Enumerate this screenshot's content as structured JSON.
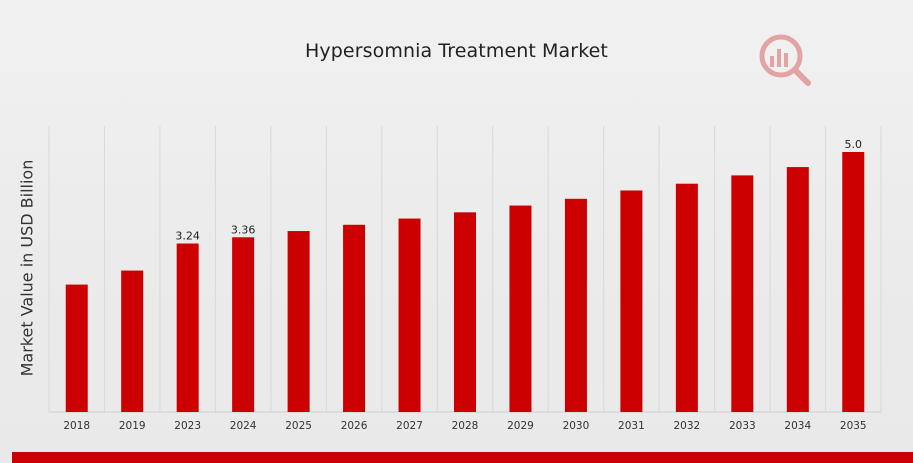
{
  "chart_data": {
    "type": "bar",
    "title": "Hypersomnia Treatment Market",
    "xlabel": "",
    "ylabel": "Market Value in USD Billion",
    "categories": [
      "2018",
      "2019",
      "2023",
      "2024",
      "2025",
      "2026",
      "2027",
      "2028",
      "2029",
      "2030",
      "2031",
      "2032",
      "2033",
      "2034",
      "2035"
    ],
    "series": [
      {
        "values": [
          2.45,
          2.72,
          3.24,
          3.36,
          3.48,
          3.6,
          3.72,
          3.84,
          3.97,
          4.1,
          4.26,
          4.39,
          4.55,
          4.71,
          5.0
        ]
      }
    ],
    "data_labels": [
      "",
      "",
      "3.24",
      "3.36",
      "",
      "",
      "",
      "",
      "",
      "",
      "",
      "",
      "",
      "",
      "5.0"
    ],
    "ylim": [
      0,
      5.5
    ],
    "grid": "vertical",
    "legend": "none",
    "colors": {
      "bar": "#cc0000",
      "grid": "#d9d9d9",
      "footer": "#cc0000"
    }
  },
  "logo": {
    "icon": "market-research-logo-icon"
  }
}
